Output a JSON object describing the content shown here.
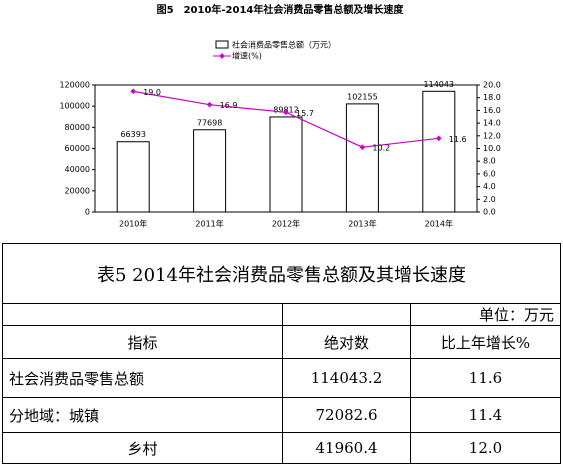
{
  "chart_data": {
    "type": "bar",
    "title": "图5　2010年-2014年社会消费品零售总额及增长速度",
    "categories": [
      "2010年",
      "2011年",
      "2012年",
      "2013年",
      "2014年"
    ],
    "series": [
      {
        "name": "社会消费品零售总额（万元）",
        "type": "bar",
        "color": "#ffffff",
        "values": [
          66393,
          77698,
          89812,
          102155,
          114043
        ]
      },
      {
        "name": "增速(%)",
        "type": "line",
        "axis": "y2",
        "color": "#cc00cc",
        "values": [
          19.0,
          16.9,
          15.7,
          10.2,
          11.6
        ],
        "value_labels": [
          "19.0",
          "16.9",
          "15.7",
          "10.2",
          "11.6"
        ]
      }
    ],
    "ylim": [
      0,
      120000
    ],
    "yticks": [
      0,
      20000,
      40000,
      60000,
      80000,
      100000,
      120000
    ],
    "y2lim": [
      0,
      20
    ],
    "y2ticks": [
      {
        "value": 0,
        "label": "0.0"
      },
      {
        "value": 2,
        "label": "2.0"
      },
      {
        "value": 4,
        "label": "4.0"
      },
      {
        "value": 6,
        "label": "6.0"
      },
      {
        "value": 8,
        "label": "8.0"
      },
      {
        "value": 10,
        "label": "10.0"
      },
      {
        "value": 12,
        "label": "12.0"
      },
      {
        "value": 14,
        "label": "14.0"
      },
      {
        "value": 16,
        "label": "16.0"
      },
      {
        "value": 18,
        "label": "18.0"
      },
      {
        "value": 20,
        "label": "20.0"
      }
    ]
  },
  "table": {
    "title": "表5 2014年社会消费品零售总额及其增长速度",
    "unit": "单位：万元",
    "header": [
      "指标",
      "绝对数",
      "比上年增长%"
    ],
    "rows": [
      [
        "社会消费品零售总额",
        "114043.2",
        "11.6"
      ],
      [
        "分地域：城镇",
        "72082.6",
        "11.4"
      ],
      [
        "乡村",
        "41960.4",
        "12.0"
      ]
    ]
  }
}
